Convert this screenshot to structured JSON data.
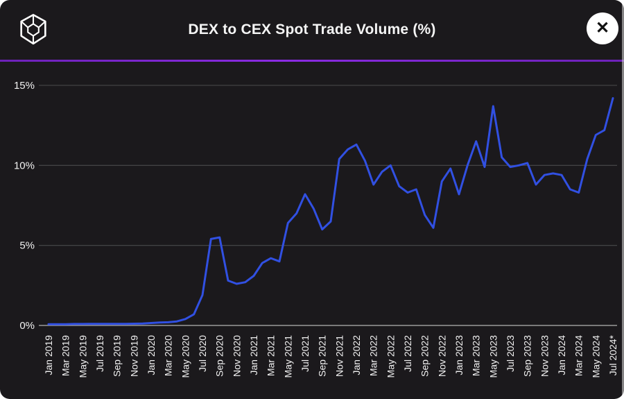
{
  "header": {
    "title": "DEX to CEX Spot Trade Volume (%)",
    "close_glyph": "✕"
  },
  "colors": {
    "background": "#1b191c",
    "line": "#3150e2",
    "grid": "#4b4b4b",
    "zero_line": "#9a9a9a",
    "divider": "#7a22cf",
    "text": "#f2f2f2"
  },
  "chart_data": {
    "type": "line",
    "title": "DEX to CEX Spot Trade Volume (%)",
    "legend": [],
    "grid": "horizontal-only",
    "ylim": [
      0,
      15
    ],
    "y_ticks": [
      0,
      5,
      10,
      15
    ],
    "y_tick_labels": [
      "0%",
      "5%",
      "10%",
      "15%"
    ],
    "x_tick_every": 2,
    "x": [
      "Jan 2019",
      "Feb 2019",
      "Mar 2019",
      "Apr 2019",
      "May 2019",
      "Jun 2019",
      "Jul 2019",
      "Aug 2019",
      "Sep 2019",
      "Oct 2019",
      "Nov 2019",
      "Dec 2019",
      "Jan 2020",
      "Feb 2020",
      "Mar 2020",
      "Apr 2020",
      "May 2020",
      "Jun 2020",
      "Jul 2020",
      "Aug 2020",
      "Sep 2020",
      "Oct 2020",
      "Nov 2020",
      "Dec 2020",
      "Jan 2021",
      "Feb 2021",
      "Mar 2021",
      "Apr 2021",
      "May 2021",
      "Jun 2021",
      "Jul 2021",
      "Aug 2021",
      "Sep 2021",
      "Oct 2021",
      "Nov 2021",
      "Dec 2021",
      "Jan 2022",
      "Feb 2022",
      "Mar 2022",
      "Apr 2022",
      "May 2022",
      "Jun 2022",
      "Jul 2022",
      "Aug 2022",
      "Sep 2022",
      "Oct 2022",
      "Nov 2022",
      "Dec 2022",
      "Jan 2023",
      "Feb 2023",
      "Mar 2023",
      "Apr 2023",
      "May 2023",
      "Jun 2023",
      "Jul 2023",
      "Aug 2023",
      "Sep 2023",
      "Oct 2023",
      "Nov 2023",
      "Dec 2023",
      "Jan 2024",
      "Feb 2024",
      "Mar 2024",
      "Apr 2024",
      "May 2024",
      "Jun 2024",
      "Jul 2024*"
    ],
    "values": [
      0.08,
      0.08,
      0.08,
      0.09,
      0.09,
      0.1,
      0.1,
      0.1,
      0.1,
      0.1,
      0.11,
      0.12,
      0.15,
      0.18,
      0.2,
      0.25,
      0.4,
      0.7,
      1.9,
      5.4,
      5.5,
      2.8,
      2.6,
      2.7,
      3.1,
      3.9,
      4.2,
      4.0,
      6.4,
      7.0,
      8.2,
      7.3,
      6.0,
      6.5,
      10.4,
      11.0,
      11.3,
      10.3,
      8.8,
      9.6,
      10.0,
      8.7,
      8.3,
      8.5,
      6.9,
      6.1,
      9.0,
      9.8,
      8.2,
      10.0,
      11.5,
      9.9,
      13.7,
      10.5,
      9.9,
      10.0,
      10.15,
      8.8,
      9.4,
      9.5,
      9.4,
      8.5,
      8.3,
      10.4,
      11.9,
      12.2,
      14.2
    ]
  }
}
